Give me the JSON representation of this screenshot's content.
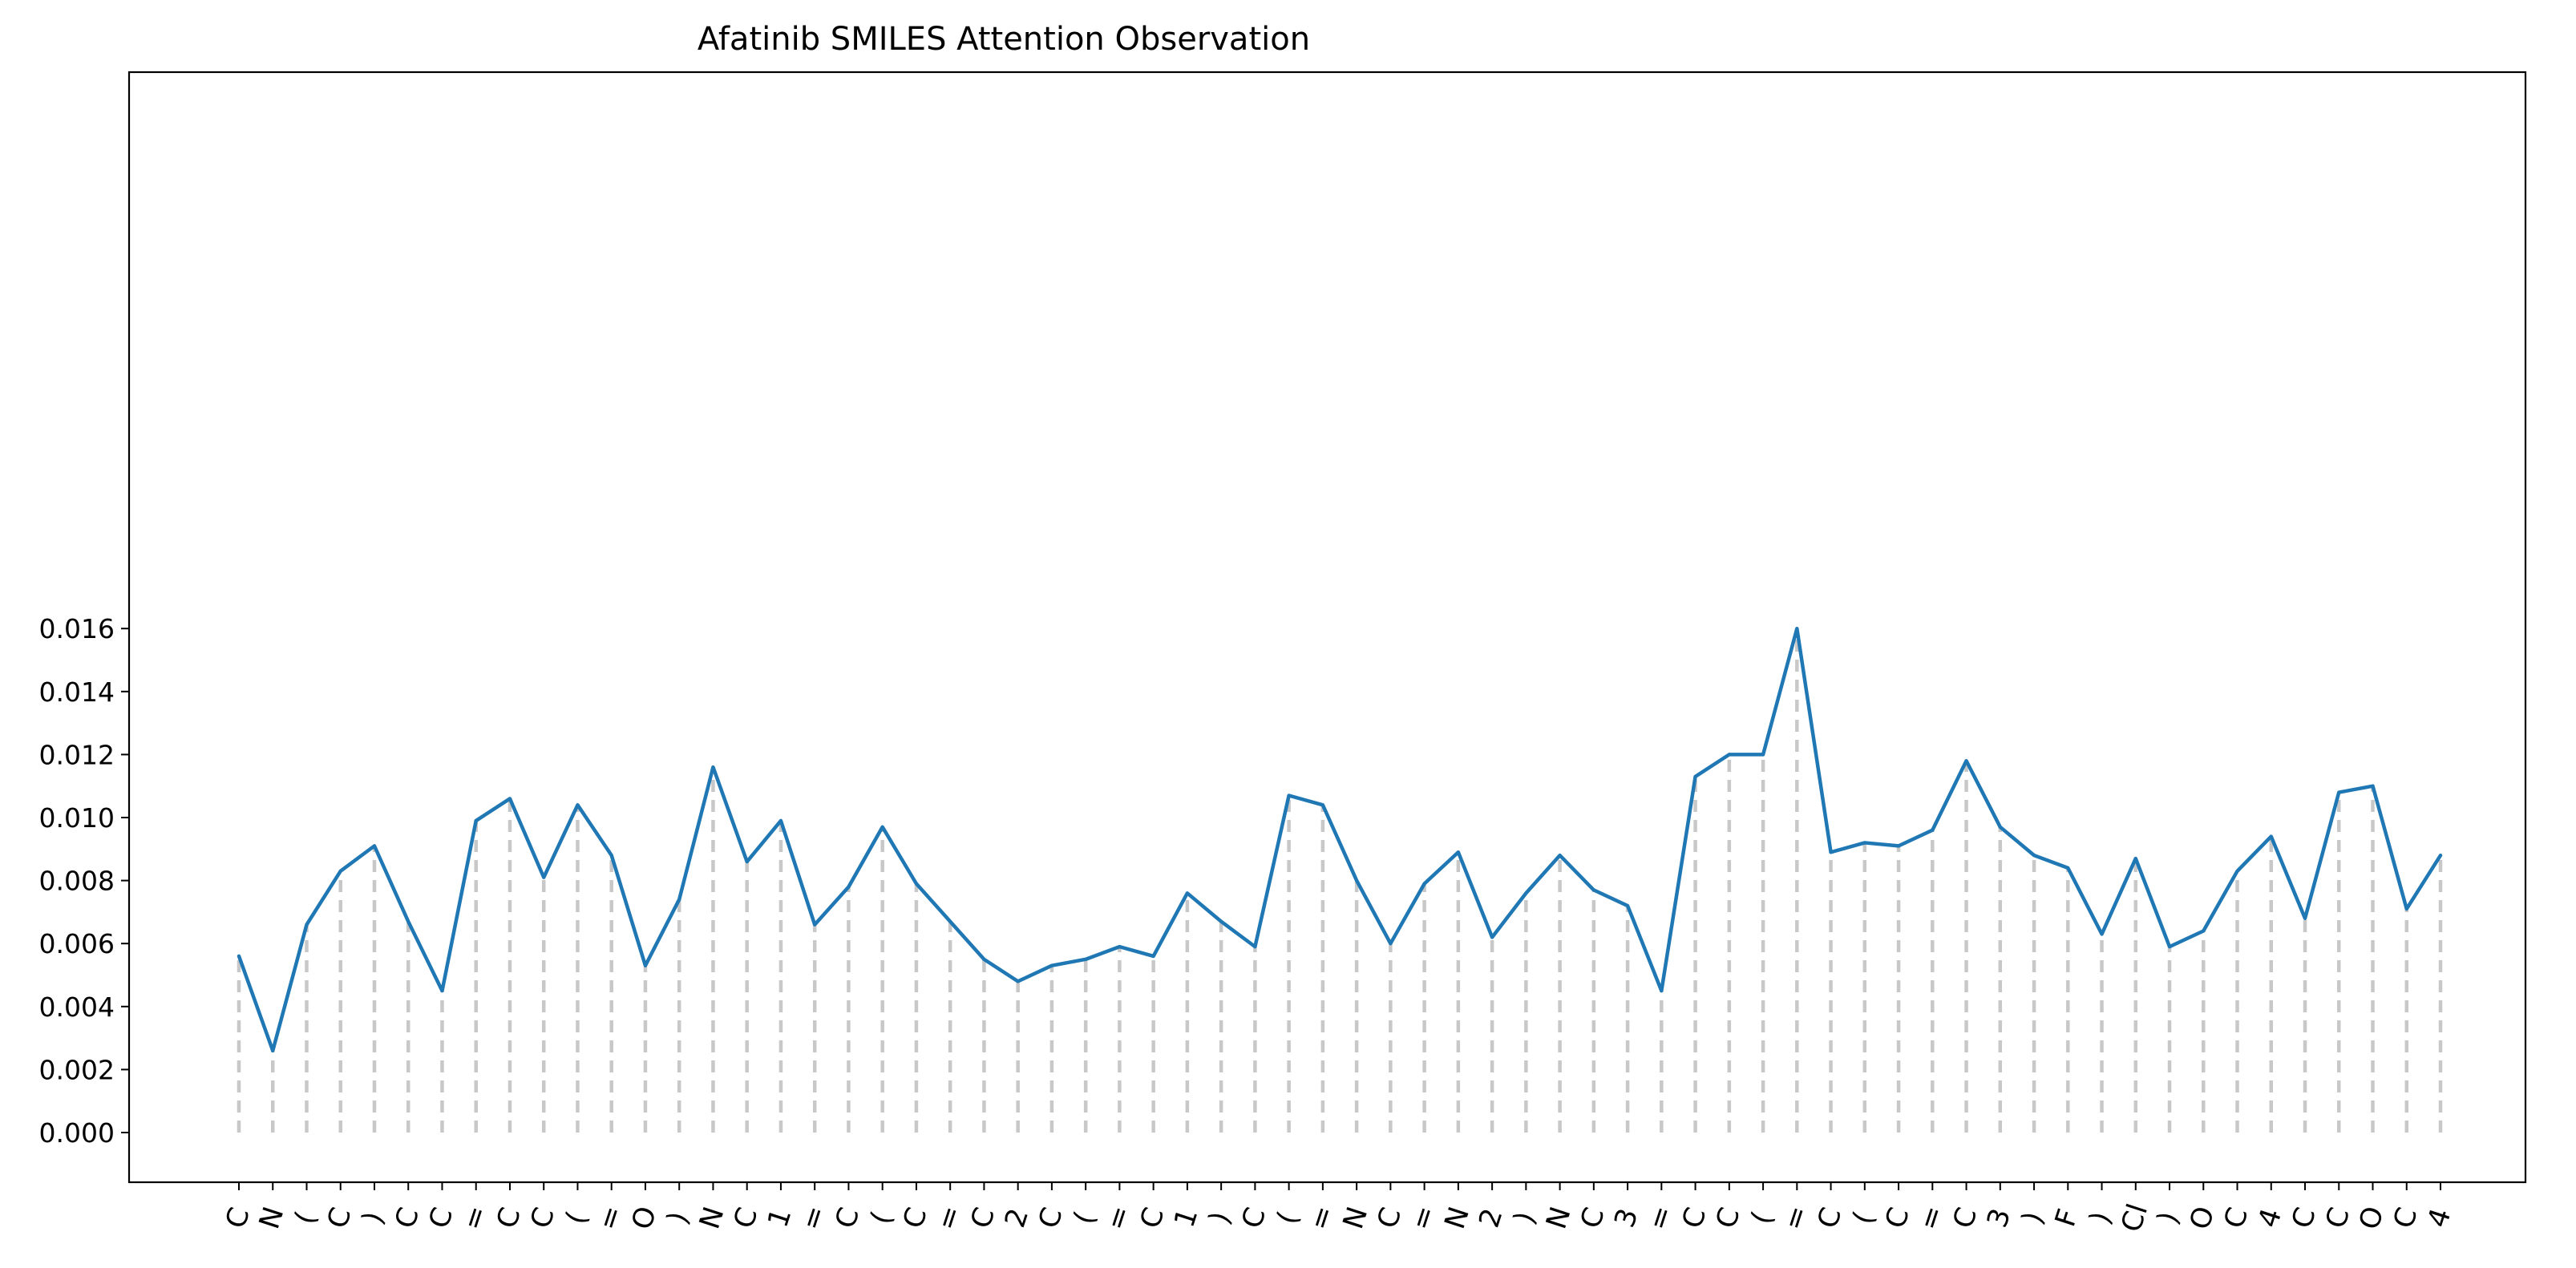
{
  "chart_data": {
    "type": "line",
    "title": "Afatinib SMILES Attention Observation",
    "xlabel": "",
    "ylabel": "",
    "ylim": [
      0.0,
      0.0168
    ],
    "yticks": [
      0.0,
      0.002,
      0.004,
      0.006,
      0.008,
      0.01,
      0.012,
      0.014,
      0.016
    ],
    "ytick_labels": [
      "0.000",
      "0.002",
      "0.004",
      "0.006",
      "0.008",
      "0.010",
      "0.012",
      "0.014",
      "0.016"
    ],
    "grid": false,
    "stem_lines": true,
    "colors": {
      "line": "#1f77b4",
      "stem": "#c8c8c8",
      "axes": "#000000"
    },
    "categories": [
      "C",
      "N",
      "(",
      "C",
      ")",
      "C",
      "C",
      "=",
      "C",
      "C",
      "(",
      "=",
      "O",
      ")",
      "N",
      "C",
      "1",
      "=",
      "C",
      "(",
      "C",
      "=",
      "C",
      "2",
      "C",
      "(",
      "=",
      "C",
      "1",
      ")",
      "C",
      "(",
      "=",
      "N",
      "C",
      "=",
      "N",
      "2",
      ")",
      "N",
      "C",
      "3",
      "=",
      "C",
      "C",
      "(",
      "=",
      "C",
      "(",
      "C",
      "=",
      "C",
      "3",
      ")",
      "F",
      ")",
      "Cl",
      ")",
      "O",
      "C",
      "4",
      "C",
      "C",
      "O",
      "C",
      "4"
    ],
    "values": [
      0.0056,
      0.0026,
      0.0066,
      0.0083,
      0.0091,
      0.0067,
      0.0045,
      0.0099,
      0.0106,
      0.0081,
      0.0104,
      0.0088,
      0.0053,
      0.0074,
      0.0116,
      0.0086,
      0.0099,
      0.0066,
      0.0078,
      0.0097,
      0.0079,
      0.0067,
      0.0055,
      0.0048,
      0.0053,
      0.0055,
      0.0059,
      0.0056,
      0.0076,
      0.0067,
      0.0059,
      0.0107,
      0.0104,
      0.008,
      0.006,
      0.0079,
      0.0089,
      0.0062,
      0.0076,
      0.0088,
      0.0077,
      0.0072,
      0.0045,
      0.0113,
      0.012,
      0.012,
      0.016,
      0.0089,
      0.0092,
      0.0091,
      0.0096,
      0.0118,
      0.0097,
      0.0088,
      0.0084,
      0.0063,
      0.0087,
      0.0059,
      0.0064,
      0.0083,
      0.0094,
      0.0068,
      0.0108,
      0.011,
      0.0071,
      0.0088
    ]
  }
}
